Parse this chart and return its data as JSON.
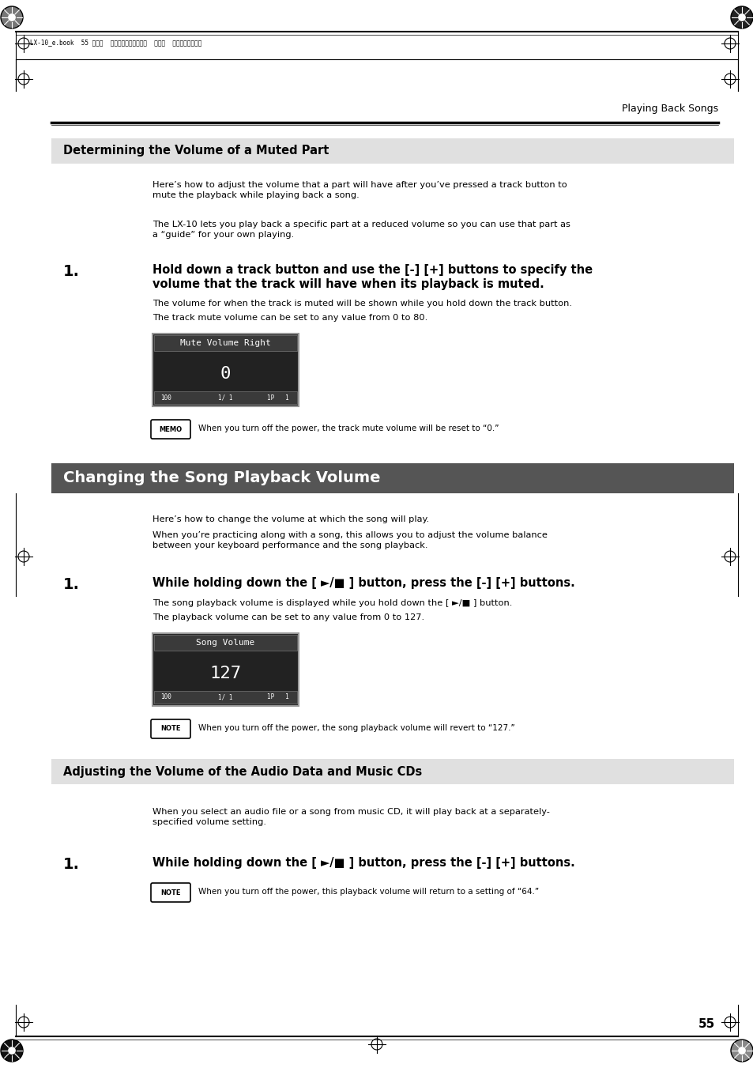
{
  "page_bg": "#ffffff",
  "page_width": 9.54,
  "page_height": 13.51,
  "dpi": 100,
  "header_text": "LX-10_e.book  55 ページ  ２００８年９月２２日  月曜日  午前１０時５１分",
  "section_right_text": "Playing Back Songs",
  "section1_title": "Determining the Volume of a Muted Part",
  "section1_bg": "#e0e0e0",
  "section1_title_color": "#000000",
  "section1_p1": "Here’s how to adjust the volume that a part will have after you’ve pressed a track button to\nmute the playback while playing back a song.",
  "section1_p2": "The LX-10 lets you play back a specific part at a reduced volume so you can use that part as\na “guide” for your own playing.",
  "step1_bold_line1": "Hold down a track button and use the [-] [+] buttons to specify the",
  "step1_bold_line2": "volume that the track will have when its playback is muted.",
  "step1_p1": "The volume for when the track is muted will be shown while you hold down the track button.",
  "step1_p2": "The track mute volume can be set to any value from 0 to 80.",
  "lcd1_title": "Mute Volume Right",
  "lcd1_value": "0",
  "memo_text": "When you turn off the power, the track mute volume will be reset to “0.”",
  "section2_title": "Changing the Song Playback Volume",
  "section2_bg": "#555555",
  "section2_title_color": "#ffffff",
  "section2_p1": "Here’s how to change the volume at which the song will play.",
  "section2_p2": "When you’re practicing along with a song, this allows you to adjust the volume balance\nbetween your keyboard performance and the song playback.",
  "step2_bold": "While holding down the [ ►/■ ] button, press the [-] [+] buttons.",
  "step2_p1": "The song playback volume is displayed while you hold down the [ ►/■ ] button.",
  "step2_p2": "The playback volume can be set to any value from 0 to 127.",
  "lcd2_title": "Song Volume",
  "lcd2_value": "127",
  "note1_text": "When you turn off the power, the song playback volume will revert to “127.”",
  "section3_title": "Adjusting the Volume of the Audio Data and Music CDs",
  "section3_bg": "#e0e0e0",
  "section3_title_color": "#000000",
  "section3_p1": "When you select an audio file or a song from music CD, it will play back at a separately-\nspecified volume setting.",
  "step3_bold": "While holding down the [ ►/■ ] button, press the [-] [+] buttons.",
  "note2_text": "When you turn off the power, this playback volume will return to a setting of “64.”",
  "page_number": "55",
  "lcd_bg": "#222222",
  "lcd_title_bg": "#3a3a3a",
  "lcd_bottom_bg": "#3a3a3a",
  "lcd_border": "#999999",
  "lcd_text": "#ffffff"
}
